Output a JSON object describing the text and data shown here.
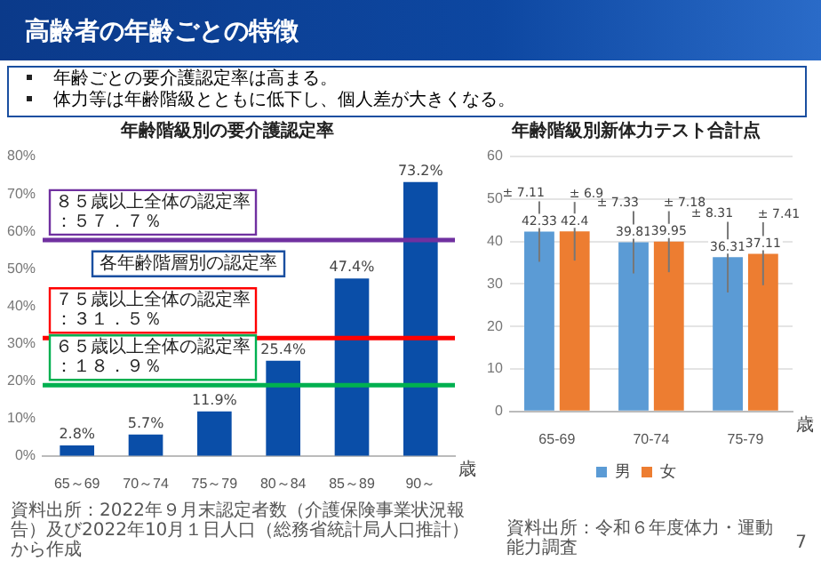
{
  "chart_data": [
    {
      "type": "bar",
      "title": "年齢階級別の要介護認定率",
      "categories": [
        "65～69",
        "70～74",
        "75～79",
        "80～84",
        "85～89",
        "90～"
      ],
      "xlabel": "歳",
      "values": [
        2.8,
        5.7,
        11.9,
        25.4,
        47.4,
        73.2
      ],
      "color": "#0a4ea8",
      "value_labels": [
        "2.8%",
        "5.7%",
        "11.9%",
        "25.4%",
        "47.4%",
        "73.2%"
      ],
      "ylim": [
        0,
        80
      ],
      "yticks": [
        {
          "value": 0,
          "label": "0%"
        },
        {
          "value": 10,
          "label": "10%"
        },
        {
          "value": 20,
          "label": "20%"
        },
        {
          "value": 30,
          "label": "30%"
        },
        {
          "value": 40,
          "label": "40%"
        },
        {
          "value": 50,
          "label": "50%"
        },
        {
          "value": 60,
          "label": "60%"
        },
        {
          "value": 70,
          "label": "70%"
        },
        {
          "value": 80,
          "label": "80%"
        }
      ],
      "ref_lines": [
        {
          "axis": "y",
          "value": 57.7,
          "label": "８５歳以上全体の認定率：５７．７％",
          "color": "#7030a0"
        },
        {
          "axis": "y",
          "value": 31.5,
          "label": "７５歳以上全体の認定率：３１．５％",
          "color": "#ff0000"
        },
        {
          "axis": "y",
          "value": 18.9,
          "label": "６５歳以上全体の認定率：１８．９％",
          "color": "#00b050"
        }
      ],
      "annotations": [
        "高齢者の年齢ごとの特徴",
        "年齢ごとの要介護認定率は高まる。",
        "体力等は年齢階級とともに低下し、個人差が大きくなる。",
        "各年齢階層別の認定率",
        "資料出所：2022年９月末認定者数（介護保険事業状況報告）及び2022年10月１日人口（総務省統計局人口推計）から作成"
      ]
    },
    {
      "type": "bar",
      "title": "年齢階級別新体力テスト合計点",
      "categories": [
        "65-69",
        "70-74",
        "75-79"
      ],
      "xlabel": "歳",
      "series": [
        {
          "name": "男",
          "color": "#5b9bd5",
          "values": [
            42.33,
            39.81,
            36.31
          ],
          "errors": [
            7.11,
            7.33,
            8.31
          ]
        },
        {
          "name": "女",
          "color": "#ed7d31",
          "values": [
            42.4,
            39.95,
            37.11
          ],
          "errors": [
            6.9,
            7.18,
            7.41
          ]
        }
      ],
      "ylim": [
        0,
        60
      ],
      "yticks": [
        0,
        10,
        20,
        30,
        40,
        50,
        60
      ],
      "grid": "y",
      "legend": "bottom",
      "data_labels": true,
      "annotations": [
        "± 7.11",
        "± 6.9",
        "± 7.33",
        "± 7.18",
        "± 8.31",
        "± 7.41",
        "資料出所：令和６年度体力・運動能力調査",
        "7"
      ]
    }
  ]
}
